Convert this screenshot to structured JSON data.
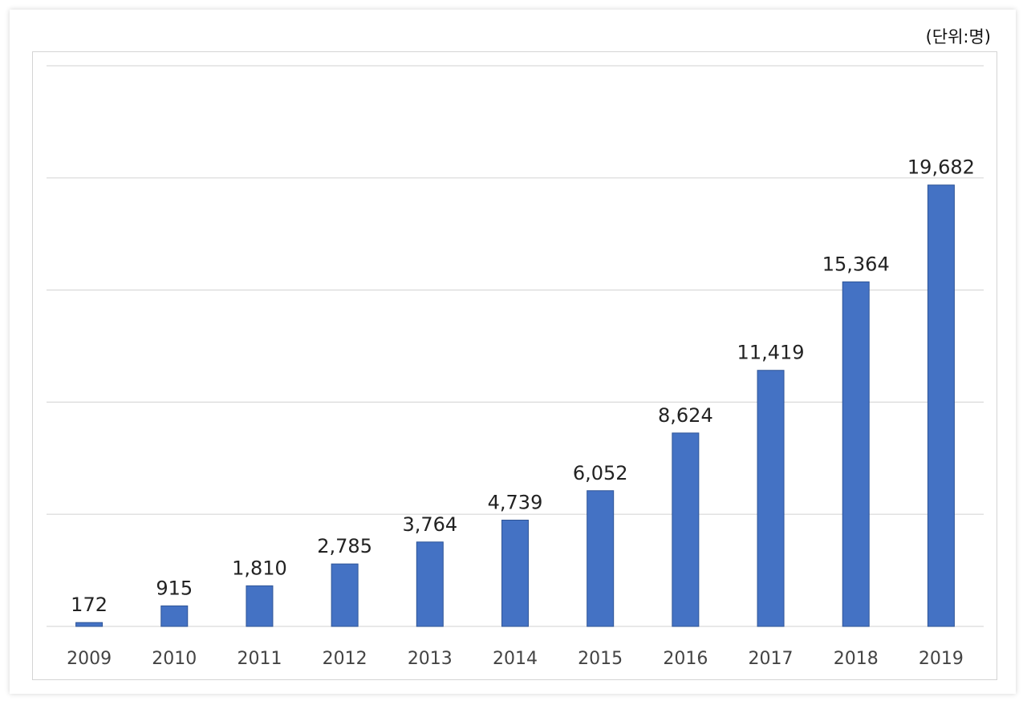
{
  "unit_label": "(단위:명)",
  "colors": {
    "bar": "#4472C4",
    "bar_edge": "#2F5597",
    "grid": "#d9d9d9",
    "text": "#222222",
    "axis_text": "#444444"
  },
  "chart_data": {
    "type": "bar",
    "categories": [
      "2009",
      "2010",
      "2011",
      "2012",
      "2013",
      "2014",
      "2015",
      "2016",
      "2017",
      "2018",
      "2019"
    ],
    "values": [
      172,
      915,
      1810,
      2785,
      3764,
      4739,
      6052,
      8624,
      11419,
      15364,
      19682
    ],
    "data_labels": [
      "172",
      "915",
      "1,810",
      "2,785",
      "3,764",
      "4,739",
      "6,052",
      "8,624",
      "11,419",
      "15,364",
      "19,682"
    ],
    "ylim": [
      0,
      25000
    ],
    "grid_step": 5000,
    "grid": true,
    "legend": "none"
  }
}
